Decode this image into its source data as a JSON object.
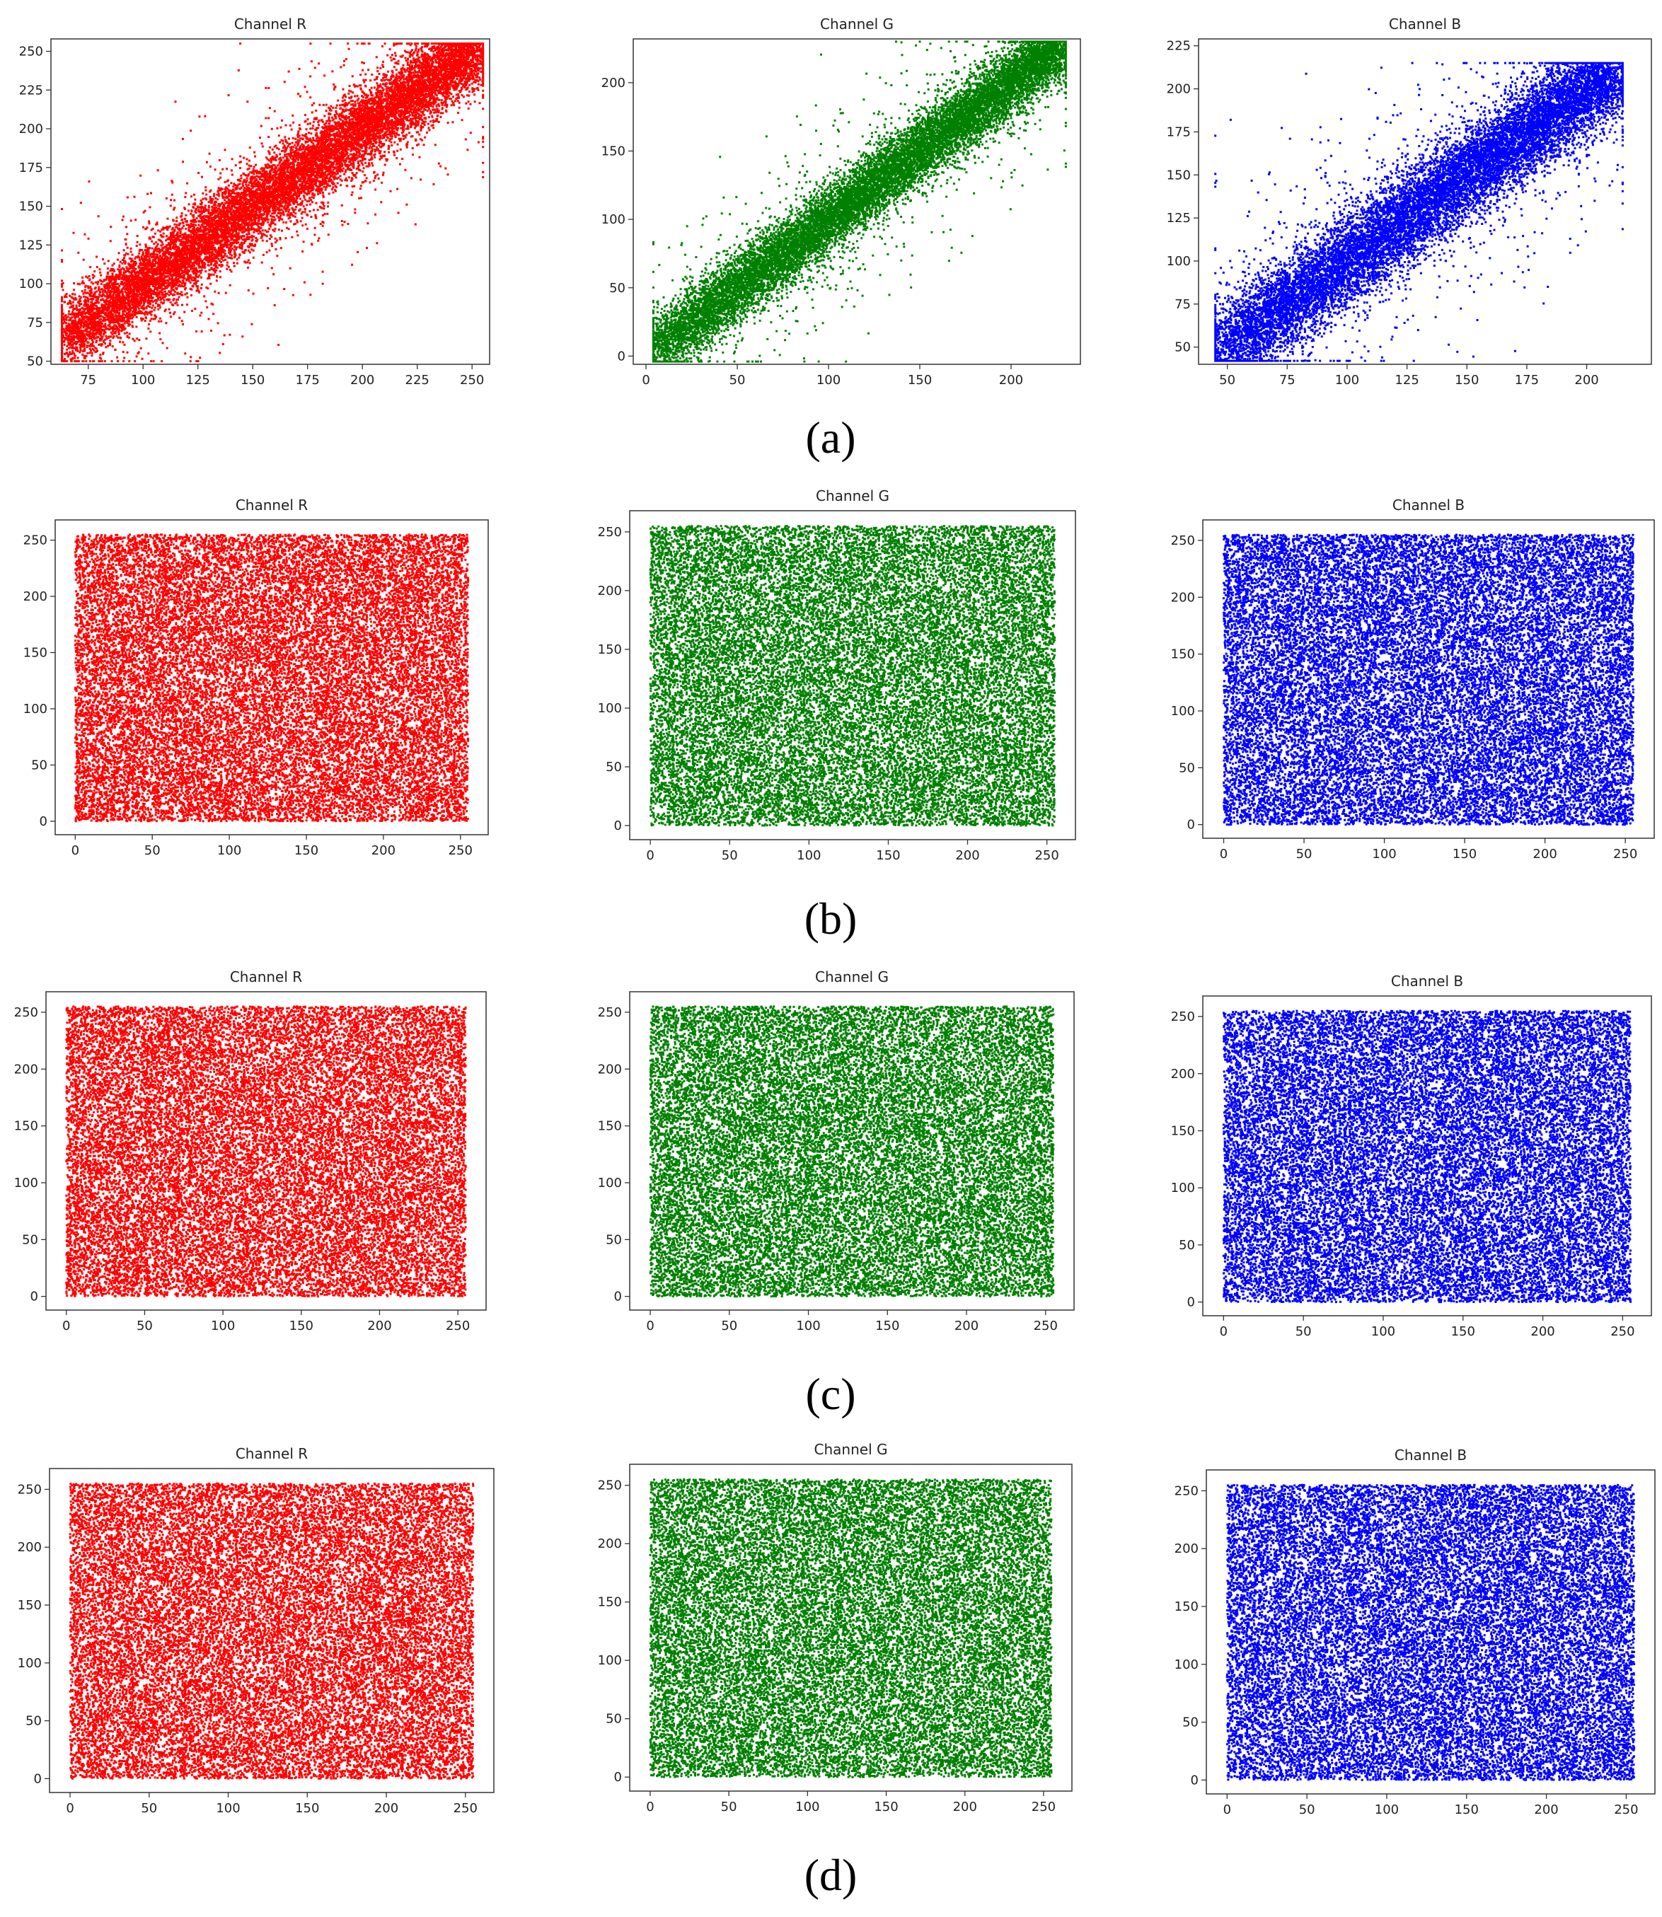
{
  "colors": {
    "Channel R": "#ff0000",
    "Channel G": "#008000",
    "Channel B": "#0000ff"
  },
  "rows": [
    {
      "label": "(a)",
      "charts": [
        {
          "title": "Channel R",
          "type": "scatter",
          "distribution": "correlated",
          "color_key": "Channel R",
          "xticks": [
            75,
            100,
            125,
            150,
            175,
            200,
            225,
            250
          ],
          "xlim": [
            58,
            258
          ],
          "yticks": [
            50,
            75,
            100,
            125,
            150,
            175,
            200,
            225,
            250
          ],
          "ylim": [
            48,
            258
          ],
          "range": [
            63,
            255
          ],
          "spread": 11
        },
        {
          "title": "Channel G",
          "type": "scatter",
          "distribution": "correlated",
          "color_key": "Channel G",
          "xticks": [
            0,
            50,
            100,
            150,
            200
          ],
          "xlim": [
            -7,
            238
          ],
          "yticks": [
            0,
            50,
            100,
            150,
            200
          ],
          "ylim": [
            -6,
            232
          ],
          "range": [
            4,
            230
          ],
          "spread": 11
        },
        {
          "title": "Channel B",
          "type": "scatter",
          "distribution": "correlated",
          "color_key": "Channel B",
          "xticks": [
            50,
            75,
            100,
            125,
            150,
            175,
            200
          ],
          "xlim": [
            38,
            227
          ],
          "yticks": [
            50,
            75,
            100,
            125,
            150,
            175,
            200,
            225
          ],
          "ylim": [
            40,
            229
          ],
          "range": [
            45,
            215
          ],
          "spread": 12
        }
      ]
    },
    {
      "label": "(b)",
      "charts": [
        {
          "title": "Channel R",
          "type": "scatter",
          "distribution": "uniform",
          "color_key": "Channel R",
          "xticks": [
            0,
            50,
            100,
            150,
            200,
            250
          ],
          "xlim": [
            -13,
            268
          ],
          "yticks": [
            0,
            50,
            100,
            150,
            200,
            250
          ],
          "ylim": [
            -12,
            268
          ],
          "range": [
            0,
            255
          ]
        },
        {
          "title": "Channel G",
          "type": "scatter",
          "distribution": "uniform",
          "color_key": "Channel G",
          "xticks": [
            0,
            50,
            100,
            150,
            200,
            250
          ],
          "xlim": [
            -13,
            268
          ],
          "yticks": [
            0,
            50,
            100,
            150,
            200,
            250
          ],
          "ylim": [
            -12,
            268
          ],
          "range": [
            0,
            255
          ]
        },
        {
          "title": "Channel B",
          "type": "scatter",
          "distribution": "uniform",
          "color_key": "Channel B",
          "xticks": [
            0,
            50,
            100,
            150,
            200,
            250
          ],
          "xlim": [
            -13,
            268
          ],
          "yticks": [
            0,
            50,
            100,
            150,
            200,
            250
          ],
          "ylim": [
            -12,
            268
          ],
          "range": [
            0,
            255
          ]
        }
      ]
    },
    {
      "label": "(c)",
      "charts": [
        {
          "title": "Channel R",
          "type": "scatter",
          "distribution": "uniform",
          "color_key": "Channel R",
          "xticks": [
            0,
            50,
            100,
            150,
            200,
            250
          ],
          "xlim": [
            -13,
            268
          ],
          "yticks": [
            0,
            50,
            100,
            150,
            200,
            250
          ],
          "ylim": [
            -12,
            268
          ],
          "range": [
            0,
            255
          ]
        },
        {
          "title": "Channel G",
          "type": "scatter",
          "distribution": "uniform",
          "color_key": "Channel G",
          "xticks": [
            0,
            50,
            100,
            150,
            200,
            250
          ],
          "xlim": [
            -13,
            268
          ],
          "yticks": [
            0,
            50,
            100,
            150,
            200,
            250
          ],
          "ylim": [
            -12,
            268
          ],
          "range": [
            0,
            255
          ]
        },
        {
          "title": "Channel B",
          "type": "scatter",
          "distribution": "uniform",
          "color_key": "Channel B",
          "xticks": [
            0,
            50,
            100,
            150,
            200,
            250
          ],
          "xlim": [
            -13,
            268
          ],
          "yticks": [
            0,
            50,
            100,
            150,
            200,
            250
          ],
          "ylim": [
            -12,
            268
          ],
          "range": [
            0,
            255
          ]
        }
      ]
    },
    {
      "label": "(d)",
      "charts": [
        {
          "title": "Channel R",
          "type": "scatter",
          "distribution": "uniform",
          "color_key": "Channel R",
          "xticks": [
            0,
            50,
            100,
            150,
            200,
            250
          ],
          "xlim": [
            -13,
            268
          ],
          "yticks": [
            0,
            50,
            100,
            150,
            200,
            250
          ],
          "ylim": [
            -12,
            268
          ],
          "range": [
            0,
            255
          ]
        },
        {
          "title": "Channel G",
          "type": "scatter",
          "distribution": "uniform",
          "color_key": "Channel G",
          "xticks": [
            0,
            50,
            100,
            150,
            200,
            250
          ],
          "xlim": [
            -13,
            268
          ],
          "yticks": [
            0,
            50,
            100,
            150,
            200,
            250
          ],
          "ylim": [
            -12,
            268
          ],
          "range": [
            0,
            255
          ]
        },
        {
          "title": "Channel B",
          "type": "scatter",
          "distribution": "uniform",
          "color_key": "Channel B",
          "xticks": [
            0,
            50,
            100,
            150,
            200,
            250
          ],
          "xlim": [
            -13,
            268
          ],
          "yticks": [
            0,
            50,
            100,
            150,
            200,
            250
          ],
          "ylim": [
            -12,
            268
          ],
          "range": [
            0,
            255
          ]
        }
      ]
    }
  ],
  "chart_data": [
    {
      "type": "scatter",
      "title": "Channel R",
      "panel": "(a)",
      "description_values": {
        "relation": "positive linear, y ≈ x"
      },
      "x_range": [
        63,
        255
      ],
      "y_range": [
        58,
        255
      ],
      "xlim": [
        58,
        258
      ],
      "ylim": [
        48,
        258
      ]
    },
    {
      "type": "scatter",
      "title": "Channel G",
      "panel": "(a)",
      "description_values": {
        "relation": "positive linear, y ≈ x"
      },
      "x_range": [
        4,
        230
      ],
      "y_range": [
        2,
        230
      ],
      "xlim": [
        -7,
        238
      ],
      "ylim": [
        -6,
        232
      ]
    },
    {
      "type": "scatter",
      "title": "Channel B",
      "panel": "(a)",
      "description_values": {
        "relation": "positive linear, y ≈ x"
      },
      "x_range": [
        45,
        215
      ],
      "y_range": [
        42,
        220
      ],
      "xlim": [
        38,
        227
      ],
      "ylim": [
        40,
        229
      ]
    },
    {
      "type": "scatter",
      "title": "Channel R",
      "panel": "(b)",
      "description_values": {
        "relation": "uniform"
      },
      "x_range": [
        0,
        255
      ],
      "y_range": [
        0,
        255
      ]
    },
    {
      "type": "scatter",
      "title": "Channel G",
      "panel": "(b)",
      "description_values": {
        "relation": "uniform"
      },
      "x_range": [
        0,
        255
      ],
      "y_range": [
        0,
        255
      ]
    },
    {
      "type": "scatter",
      "title": "Channel B",
      "panel": "(b)",
      "description_values": {
        "relation": "uniform"
      },
      "x_range": [
        0,
        255
      ],
      "y_range": [
        0,
        255
      ]
    },
    {
      "type": "scatter",
      "title": "Channel R",
      "panel": "(c)",
      "description_values": {
        "relation": "uniform"
      },
      "x_range": [
        0,
        255
      ],
      "y_range": [
        0,
        255
      ]
    },
    {
      "type": "scatter",
      "title": "Channel G",
      "panel": "(c)",
      "description_values": {
        "relation": "uniform"
      },
      "x_range": [
        0,
        255
      ],
      "y_range": [
        0,
        255
      ]
    },
    {
      "type": "scatter",
      "title": "Channel B",
      "panel": "(c)",
      "description_values": {
        "relation": "uniform"
      },
      "x_range": [
        0,
        255
      ],
      "y_range": [
        0,
        255
      ]
    },
    {
      "type": "scatter",
      "title": "Channel R",
      "panel": "(d)",
      "description_values": {
        "relation": "uniform"
      },
      "x_range": [
        0,
        255
      ],
      "y_range": [
        0,
        255
      ]
    },
    {
      "type": "scatter",
      "title": "Channel G",
      "panel": "(d)",
      "description_values": {
        "relation": "uniform"
      },
      "x_range": [
        0,
        255
      ],
      "y_range": [
        0,
        255
      ]
    },
    {
      "type": "scatter",
      "title": "Channel B",
      "panel": "(d)",
      "description_values": {
        "relation": "uniform"
      },
      "x_range": [
        0,
        255
      ],
      "y_range": [
        0,
        255
      ]
    }
  ]
}
